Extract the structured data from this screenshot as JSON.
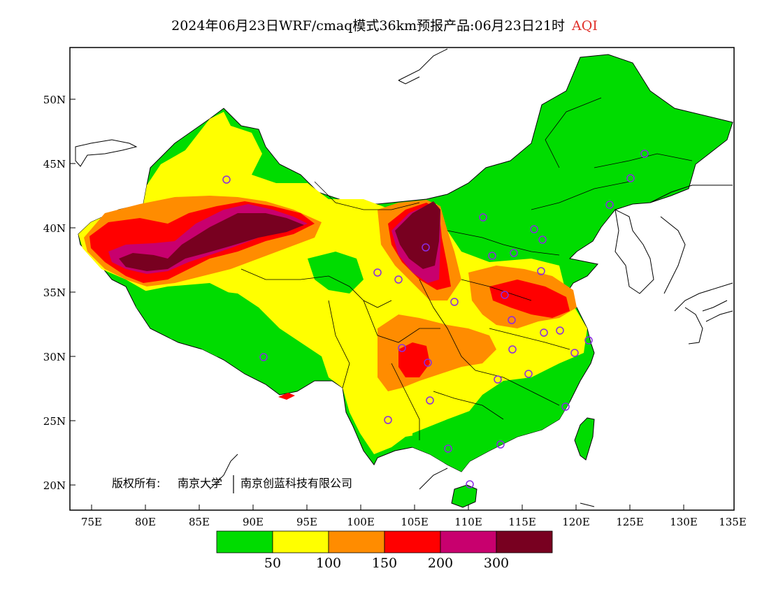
{
  "title": {
    "text": "2024年06月23日WRF/cmaq模式36km预报产品:06月23日21时",
    "variable": "AQI"
  },
  "axes": {
    "lon_ticks": [
      "75E",
      "80E",
      "85E",
      "90E",
      "95E",
      "100E",
      "105E",
      "110E",
      "115E",
      "120E",
      "125E",
      "130E",
      "135E"
    ],
    "lat_ticks": [
      "20N",
      "25N",
      "30N",
      "35N",
      "40N",
      "45N",
      "50N"
    ]
  },
  "copyright": {
    "label": "版权所有:",
    "org1": "南京大学",
    "org2": "南京创蓝科技有限公司"
  },
  "legend": {
    "colors": [
      "#00dc00",
      "#ffff00",
      "#ff8c00",
      "#ff0000",
      "#c8006e",
      "#780020"
    ],
    "labels": [
      "50",
      "100",
      "150",
      "200",
      "300"
    ]
  },
  "map_colors": {
    "good": "#00dc00",
    "moderate": "#ffff00",
    "unhealthy_sensitive": "#ff8c00",
    "unhealthy": "#ff0000",
    "very_unhealthy": "#c8006e",
    "hazardous": "#780020",
    "station_marker": "#8a2be2"
  },
  "station_icon": "circle-station-icon"
}
